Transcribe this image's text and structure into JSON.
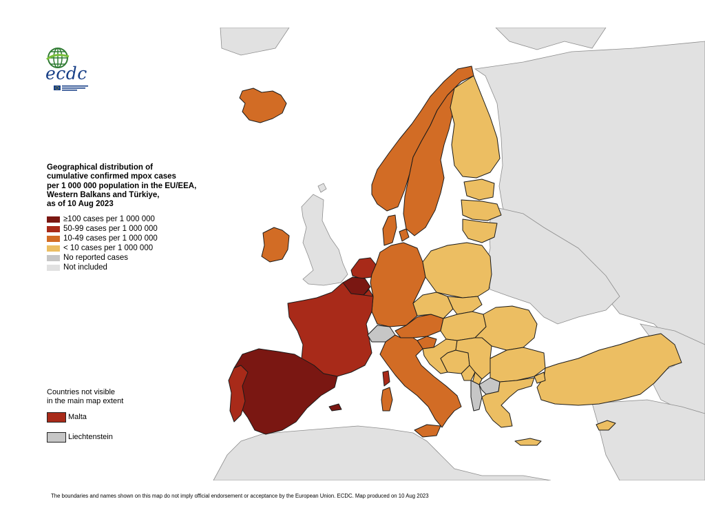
{
  "colors": {
    "c100plus": "#7a1712",
    "c50_99": "#a82a19",
    "c10_49": "#d26c25",
    "c_lt10": "#ecbe62",
    "no_cases": "#c6c6c6",
    "not_included": "#e1e1e1",
    "sea": "#ffffff"
  },
  "logo": {
    "text": "ecdc",
    "subtext": "EUROPEAN CENTRE FOR DISEASE PREVENTION AND CONTROL"
  },
  "legend": {
    "title": "Geographical distribution of\ncumulative confirmed mpox cases\nper 1 000 000 population in the EU/EEA,\nWestern Balkans and Türkiye,\nas of 10 Aug 2023",
    "items": [
      {
        "label": "≥100 cases per 1 000 000",
        "color": "#7a1712"
      },
      {
        "label": "50-99 cases per 1 000 000",
        "color": "#a82a19"
      },
      {
        "label": "10-49 cases per 1 000 000",
        "color": "#d26c25"
      },
      {
        "label": "< 10 cases per 1 000 000",
        "color": "#ecbe62"
      },
      {
        "label": "No reported cases",
        "color": "#c6c6c6"
      },
      {
        "label": "Not included",
        "color": "#e1e1e1"
      }
    ]
  },
  "inset": {
    "title": "Countries not visible\nin the main map extent",
    "items": [
      {
        "label": "Malta",
        "color": "#a82a19"
      },
      {
        "label": "Liechtenstein",
        "color": "#c6c6c6"
      }
    ]
  },
  "footer": "The boundaries and names shown on this map do not imply official endorsement or acceptance by the European Union. ECDC. Map produced on 10 Aug 2023",
  "countries": [
    {
      "name": "Spain",
      "category": "c100plus"
    },
    {
      "name": "Portugal",
      "category": "c50_99"
    },
    {
      "name": "France",
      "category": "c50_99"
    },
    {
      "name": "Belgium",
      "category": "c100plus"
    },
    {
      "name": "Netherlands",
      "category": "c50_99"
    },
    {
      "name": "Luxembourg",
      "category": "c50_99"
    },
    {
      "name": "Ireland",
      "category": "c10_49"
    },
    {
      "name": "Iceland",
      "category": "c10_49"
    },
    {
      "name": "Norway",
      "category": "c10_49"
    },
    {
      "name": "Sweden",
      "category": "c10_49"
    },
    {
      "name": "Denmark",
      "category": "c10_49"
    },
    {
      "name": "Germany",
      "category": "c10_49"
    },
    {
      "name": "Austria",
      "category": "c10_49"
    },
    {
      "name": "Italy",
      "category": "c10_49"
    },
    {
      "name": "Slovenia",
      "category": "c10_49"
    },
    {
      "name": "Finland",
      "category": "c_lt10"
    },
    {
      "name": "Estonia",
      "category": "c_lt10"
    },
    {
      "name": "Latvia",
      "category": "c_lt10"
    },
    {
      "name": "Lithuania",
      "category": "c_lt10"
    },
    {
      "name": "Poland",
      "category": "c_lt10"
    },
    {
      "name": "Czechia",
      "category": "c_lt10"
    },
    {
      "name": "Slovakia",
      "category": "c_lt10"
    },
    {
      "name": "Hungary",
      "category": "c_lt10"
    },
    {
      "name": "Romania",
      "category": "c_lt10"
    },
    {
      "name": "Bulgaria",
      "category": "c_lt10"
    },
    {
      "name": "Croatia",
      "category": "c_lt10"
    },
    {
      "name": "Bosnia and Herzegovina",
      "category": "c_lt10"
    },
    {
      "name": "Serbia",
      "category": "c_lt10"
    },
    {
      "name": "Montenegro",
      "category": "c_lt10"
    },
    {
      "name": "Kosovo",
      "category": "c_lt10"
    },
    {
      "name": "Greece",
      "category": "c_lt10"
    },
    {
      "name": "Türkiye",
      "category": "c_lt10"
    },
    {
      "name": "Cyprus",
      "category": "c_lt10"
    },
    {
      "name": "Switzerland",
      "category": "no_cases"
    },
    {
      "name": "Albania",
      "category": "no_cases"
    },
    {
      "name": "North Macedonia",
      "category": "no_cases"
    }
  ]
}
